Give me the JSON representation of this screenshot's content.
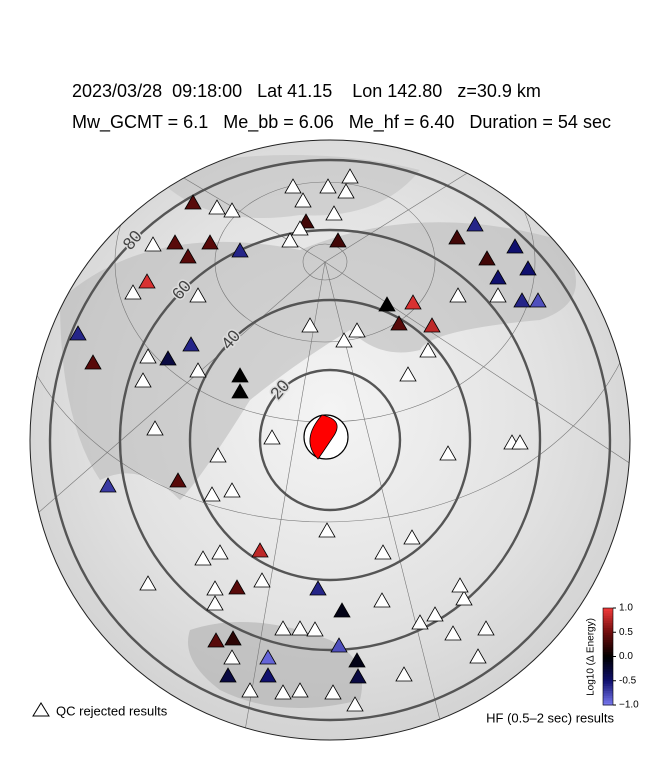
{
  "chart_data": {
    "type": "station-map",
    "title": "2023/03/28  09:18:00   Lat 41.15    Lon 142.80   z=30.9 km",
    "subtitle": "Mw_GCMT = 6.1   Me_bb = 6.06   Me_hf = 6.40   Duration = 54 sec",
    "distance_rings": [
      20,
      40,
      60,
      80
    ],
    "stations": [
      0.4,
      0.4,
      0.4,
      0.4,
      -0.6,
      0.9,
      -0.6,
      0.4,
      0.3,
      0.3,
      0.3,
      -0.6,
      0.3,
      -0.5,
      -0.5,
      -0.5,
      -0.6,
      -0.8,
      0,
      0.9,
      0.4,
      0.8,
      -0.3,
      -0.6,
      0,
      0,
      0.4,
      -0.7,
      0.8,
      0.4,
      -0.6,
      -0.1,
      -0.8,
      0.2,
      0.4,
      -0.9,
      -0.1,
      -0.3,
      -0.5,
      -0.3,
      null,
      null,
      null,
      null,
      null,
      null,
      null,
      null,
      null,
      null,
      null,
      null,
      null,
      null,
      null,
      null,
      null,
      null,
      null,
      null,
      null,
      null,
      null,
      null,
      null,
      null,
      null,
      null,
      null,
      null,
      null,
      null,
      null,
      null,
      null,
      null,
      null,
      null,
      null,
      null,
      null,
      null,
      null,
      null,
      null,
      null,
      null,
      null,
      null,
      null,
      null,
      null,
      null,
      null,
      null,
      null,
      null,
      null
    ],
    "colorbar": {
      "label": "Log10 (Δ Energy)",
      "lim": [
        -1.0,
        1.0
      ],
      "ticks": [
        {
          "value": 1.0,
          "label": "1.0"
        },
        0.5,
        {
          "value": 0.0,
          "label": "0.0"
        },
        -0.5,
        {
          "value": -1.0,
          "label": "−1.0"
        }
      ],
      "colors": [
        "#7a7af2",
        "#10106e",
        "#000000",
        "#6e0c0c",
        "#f23a3a"
      ]
    },
    "legend_qc": "QC rejected results",
    "legend_hf": "HF (0.5–2 sec) results"
  }
}
